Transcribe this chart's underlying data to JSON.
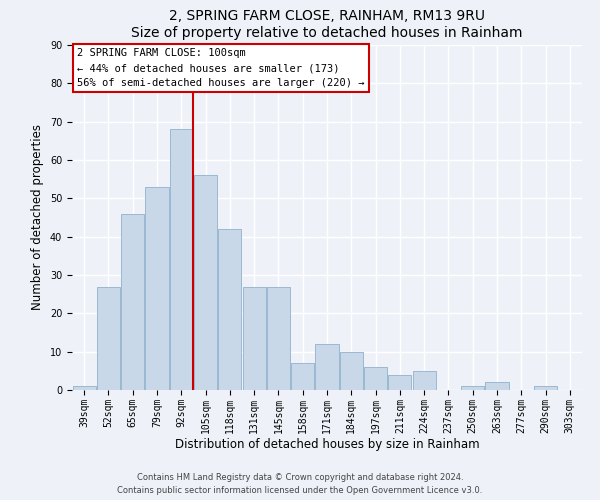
{
  "title": "2, SPRING FARM CLOSE, RAINHAM, RM13 9RU",
  "subtitle": "Size of property relative to detached houses in Rainham",
  "xlabel": "Distribution of detached houses by size in Rainham",
  "ylabel": "Number of detached properties",
  "categories": [
    "39sqm",
    "52sqm",
    "65sqm",
    "79sqm",
    "92sqm",
    "105sqm",
    "118sqm",
    "131sqm",
    "145sqm",
    "158sqm",
    "171sqm",
    "184sqm",
    "197sqm",
    "211sqm",
    "224sqm",
    "237sqm",
    "250sqm",
    "263sqm",
    "277sqm",
    "290sqm",
    "303sqm"
  ],
  "values": [
    1,
    27,
    46,
    53,
    68,
    56,
    42,
    27,
    27,
    7,
    12,
    10,
    6,
    4,
    5,
    0,
    1,
    2,
    0,
    1,
    0
  ],
  "bar_color": "#c8d8e8",
  "bar_edge_color": "#9ab8d0",
  "red_line_index": 5,
  "red_line_color": "#cc0000",
  "ylim": [
    0,
    90
  ],
  "yticks": [
    0,
    10,
    20,
    30,
    40,
    50,
    60,
    70,
    80,
    90
  ],
  "annotation_box_text": "2 SPRING FARM CLOSE: 100sqm\n← 44% of detached houses are smaller (173)\n56% of semi-detached houses are larger (220) →",
  "footer1": "Contains HM Land Registry data © Crown copyright and database right 2024.",
  "footer2": "Contains public sector information licensed under the Open Government Licence v3.0.",
  "background_color": "#eef2f8",
  "grid_color": "#ffffff",
  "title_fontsize": 10,
  "tick_fontsize": 7,
  "label_fontsize": 8.5,
  "footer_fontsize": 6,
  "annot_fontsize": 7.5
}
